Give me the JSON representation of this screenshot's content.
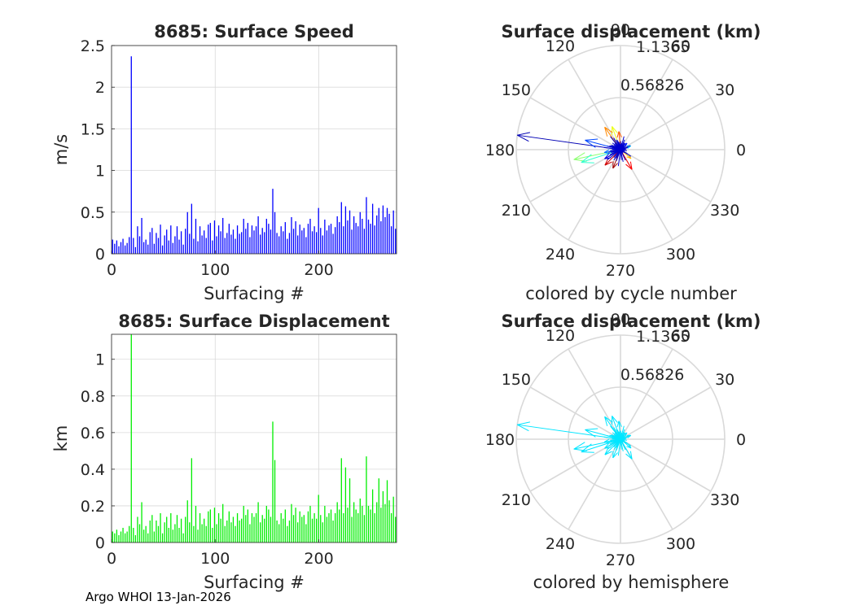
{
  "footer": "Argo WHOI 13-Jan-2026",
  "colors": {
    "speed_bars": "#0000ff",
    "disp_bars": "#00ee00",
    "hemisphere": "#00e5ff",
    "grid": "#d9d9d9",
    "axis": "#262626"
  },
  "chart_data": [
    {
      "type": "bar",
      "title": "8685: Surface Speed",
      "xlabel": "Surfacing #",
      "ylabel": "m/s",
      "xlim": [
        0,
        275
      ],
      "ylim": [
        0,
        2.5
      ],
      "xticks": [
        0,
        100,
        200
      ],
      "xtick_labels": [
        "0",
        "100",
        "200"
      ],
      "yticks": [
        0,
        0.5,
        1,
        1.5,
        2,
        2.5
      ],
      "ytick_labels": [
        "0",
        "0.5",
        "1",
        "1.5",
        "2",
        "2.5"
      ],
      "grid": true,
      "color": "#0000ff",
      "bins": 137,
      "values": [
        0.17,
        0.12,
        0.16,
        0.09,
        0.14,
        0.18,
        0.1,
        0.13,
        0.2,
        2.37,
        0.19,
        0.08,
        0.33,
        0.21,
        0.43,
        0.14,
        0.17,
        0.11,
        0.26,
        0.31,
        0.12,
        0.25,
        0.19,
        0.35,
        0.1,
        0.22,
        0.29,
        0.16,
        0.34,
        0.13,
        0.21,
        0.33,
        0.17,
        0.27,
        0.11,
        0.3,
        0.5,
        0.24,
        0.6,
        0.18,
        0.42,
        0.15,
        0.33,
        0.22,
        0.28,
        0.19,
        0.35,
        0.37,
        0.16,
        0.4,
        0.21,
        0.34,
        0.27,
        0.43,
        0.19,
        0.25,
        0.36,
        0.23,
        0.29,
        0.18,
        0.34,
        0.24,
        0.26,
        0.42,
        0.3,
        0.37,
        0.2,
        0.34,
        0.28,
        0.33,
        0.45,
        0.23,
        0.31,
        0.26,
        0.42,
        0.36,
        0.29,
        0.78,
        0.5,
        0.25,
        0.21,
        0.33,
        0.27,
        0.38,
        0.18,
        0.25,
        0.44,
        0.3,
        0.39,
        0.22,
        0.35,
        0.28,
        0.31,
        0.2,
        0.36,
        0.42,
        0.27,
        0.33,
        0.26,
        0.55,
        0.31,
        0.22,
        0.41,
        0.28,
        0.34,
        0.36,
        0.24,
        0.32,
        0.45,
        0.38,
        0.62,
        0.33,
        0.57,
        0.4,
        0.52,
        0.29,
        0.45,
        0.37,
        0.33,
        0.5,
        0.42,
        0.3,
        0.68,
        0.41,
        0.36,
        0.6,
        0.34,
        0.46,
        0.55,
        0.39,
        0.58,
        0.44,
        0.55,
        0.48,
        0.33,
        0.52,
        0.3
      ]
    },
    {
      "type": "bar",
      "title": "8685: Surface Displacement",
      "xlabel": "Surfacing #",
      "ylabel": "km",
      "xlim": [
        0,
        275
      ],
      "ylim": [
        0,
        1.1365
      ],
      "xticks": [
        0,
        100,
        200
      ],
      "xtick_labels": [
        "0",
        "100",
        "200"
      ],
      "yticks": [
        0,
        0.2,
        0.4,
        0.6,
        0.8,
        1
      ],
      "ytick_labels": [
        "0",
        "0.2",
        "0.4",
        "0.6",
        "0.8",
        "1"
      ],
      "grid": true,
      "color": "#00ee00",
      "bins": 137,
      "values": [
        0.06,
        0.05,
        0.07,
        0.04,
        0.06,
        0.08,
        0.05,
        0.06,
        0.09,
        1.1365,
        0.08,
        0.04,
        0.14,
        0.1,
        0.22,
        0.07,
        0.09,
        0.05,
        0.12,
        0.15,
        0.06,
        0.12,
        0.09,
        0.16,
        0.05,
        0.11,
        0.14,
        0.08,
        0.16,
        0.07,
        0.1,
        0.15,
        0.08,
        0.13,
        0.05,
        0.14,
        0.23,
        0.11,
        0.46,
        0.09,
        0.2,
        0.07,
        0.16,
        0.1,
        0.13,
        0.09,
        0.17,
        0.18,
        0.08,
        0.19,
        0.1,
        0.16,
        0.13,
        0.21,
        0.09,
        0.12,
        0.17,
        0.11,
        0.14,
        0.09,
        0.16,
        0.12,
        0.13,
        0.2,
        0.15,
        0.18,
        0.1,
        0.16,
        0.14,
        0.16,
        0.22,
        0.11,
        0.15,
        0.13,
        0.2,
        0.18,
        0.14,
        0.66,
        0.45,
        0.12,
        0.1,
        0.16,
        0.13,
        0.18,
        0.09,
        0.12,
        0.21,
        0.15,
        0.19,
        0.11,
        0.17,
        0.14,
        0.15,
        0.1,
        0.17,
        0.2,
        0.13,
        0.16,
        0.13,
        0.26,
        0.15,
        0.11,
        0.2,
        0.14,
        0.16,
        0.18,
        0.12,
        0.16,
        0.22,
        0.18,
        0.46,
        0.16,
        0.41,
        0.19,
        0.35,
        0.14,
        0.22,
        0.18,
        0.16,
        0.24,
        0.2,
        0.15,
        0.47,
        0.2,
        0.18,
        0.29,
        0.16,
        0.22,
        0.35,
        0.19,
        0.28,
        0.21,
        0.34,
        0.23,
        0.16,
        0.25,
        0.14
      ]
    },
    {
      "type": "polar-compass",
      "title": "Surface displacement (km)",
      "caption": "colored by cycle number",
      "rlim": [
        0,
        1.1365
      ],
      "rtick_labels": [
        "0.56826",
        "1.1365"
      ],
      "theta_labels": [
        "0",
        "30",
        "60",
        "90",
        "120",
        "150",
        "180",
        "210",
        "240",
        "270",
        "300",
        "330"
      ],
      "color_mode": "cycle",
      "vectors": [
        {
          "angle": 172,
          "r": 1.1365,
          "cycle": 9
        },
        {
          "angle": 192,
          "r": 0.52,
          "cycle": 70
        },
        {
          "angle": 198,
          "r": 0.45,
          "cycle": 60
        },
        {
          "angle": 165,
          "r": 0.4,
          "cycle": 35
        },
        {
          "angle": 110,
          "r": 0.27,
          "cycle": 80
        },
        {
          "angle": 125,
          "r": 0.3,
          "cycle": 95
        },
        {
          "angle": 300,
          "r": 0.25,
          "cycle": 110
        },
        {
          "angle": 225,
          "r": 0.24,
          "cycle": 120
        },
        {
          "angle": 248,
          "r": 0.22,
          "cycle": 130
        },
        {
          "angle": 210,
          "r": 0.2,
          "cycle": 20
        },
        {
          "angle": 190,
          "r": 0.18,
          "cycle": 40
        },
        {
          "angle": 95,
          "r": 0.2,
          "cycle": 100
        },
        {
          "angle": 320,
          "r": 0.15,
          "cycle": 90
        },
        {
          "angle": 20,
          "r": 0.12,
          "cycle": 50
        },
        {
          "angle": 45,
          "r": 0.1,
          "cycle": 30
        }
      ]
    },
    {
      "type": "polar-compass",
      "title": "Surface displacement (km)",
      "caption": "colored by hemisphere",
      "rlim": [
        0,
        1.1365
      ],
      "rtick_labels": [
        "0.56826",
        "1.1365"
      ],
      "theta_labels": [
        "0",
        "30",
        "60",
        "90",
        "120",
        "150",
        "180",
        "210",
        "240",
        "270",
        "300",
        "330"
      ],
      "color_mode": "hemisphere",
      "vectors": [
        {
          "angle": 172,
          "r": 1.1365
        },
        {
          "angle": 192,
          "r": 0.52
        },
        {
          "angle": 198,
          "r": 0.45
        },
        {
          "angle": 165,
          "r": 0.4
        },
        {
          "angle": 110,
          "r": 0.27
        },
        {
          "angle": 125,
          "r": 0.3
        },
        {
          "angle": 300,
          "r": 0.25
        },
        {
          "angle": 225,
          "r": 0.24
        },
        {
          "angle": 248,
          "r": 0.22
        },
        {
          "angle": 210,
          "r": 0.2
        },
        {
          "angle": 190,
          "r": 0.18
        },
        {
          "angle": 95,
          "r": 0.2
        },
        {
          "angle": 320,
          "r": 0.15
        },
        {
          "angle": 20,
          "r": 0.12
        },
        {
          "angle": 45,
          "r": 0.1
        }
      ]
    }
  ]
}
